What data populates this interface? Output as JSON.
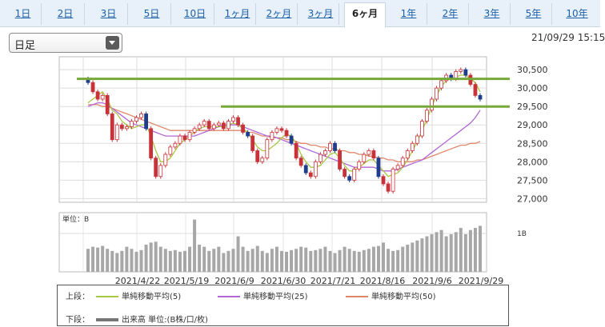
{
  "tabs": [
    {
      "label": "1日"
    },
    {
      "label": "2日"
    },
    {
      "label": "3日"
    },
    {
      "label": "5日"
    },
    {
      "label": "10日"
    },
    {
      "label": "1ヶ月"
    },
    {
      "label": "2ヶ月"
    },
    {
      "label": "3ヶ月"
    },
    {
      "label": "6ヶ月",
      "active": true
    },
    {
      "label": "1年"
    },
    {
      "label": "2年"
    },
    {
      "label": "3年"
    },
    {
      "label": "5年"
    },
    {
      "label": "10年"
    }
  ],
  "period_select": {
    "value": "日足"
  },
  "datetime": "21/09/29 15:15",
  "colors": {
    "up": "#ffffff",
    "down_red": "#c8333a",
    "down_blue": "#203c8c",
    "ma5": "#a8c844",
    "ma25": "#b266d6",
    "ma50": "#e0876a",
    "resistance": "#77a83a",
    "volume": "#a7a7a7"
  },
  "chart_data": {
    "type": "candlestick",
    "y_ticks": [
      "30,500",
      "30,000",
      "29,500",
      "29,000",
      "28,500",
      "28,000",
      "27,500",
      "27,000"
    ],
    "x_ticks": [
      "2021/4/22",
      "2021/5/19",
      "2021/6/9",
      "2021/6/30",
      "2021/7/21",
      "2021/8/16",
      "2021/9/6",
      "2021/9/29"
    ],
    "ylim": [
      26900,
      30850
    ],
    "volume_unit_label": "単位：B",
    "volume_tick": "1B",
    "resistance_lines": [
      30250,
      29500
    ],
    "close": [
      30150,
      29900,
      29700,
      29800,
      29300,
      28600,
      29000,
      28900,
      28950,
      29100,
      29200,
      29300,
      28900,
      28100,
      27600,
      27900,
      28200,
      28400,
      28500,
      28700,
      28600,
      28800,
      28900,
      29000,
      29100,
      28900,
      29000,
      29050,
      28900,
      29100,
      29200,
      29000,
      28800,
      28700,
      28300,
      28000,
      28100,
      28600,
      28800,
      28900,
      28850,
      28700,
      28500,
      28100,
      27900,
      27700,
      27600,
      28000,
      28200,
      28300,
      28500,
      28300,
      27800,
      27600,
      27500,
      27800,
      28000,
      28200,
      28300,
      28100,
      27600,
      27400,
      27200,
      27800,
      27900,
      28100,
      28300,
      28500,
      28700,
      29100,
      29400,
      29700,
      30000,
      30200,
      30350,
      30250,
      30450,
      30500,
      30350,
      30100,
      29800,
      29700
    ],
    "ma5": [
      29600,
      29700,
      29800,
      29900,
      29700,
      29400,
      29300,
      29100,
      29000,
      28900,
      28950,
      29000,
      29000,
      28700,
      28300,
      28000,
      28000,
      28100,
      28300,
      28500,
      28600,
      28700,
      28800,
      28900,
      28950,
      28950,
      28950,
      28950,
      28950,
      29000,
      29050,
      29000,
      28900,
      28800,
      28600,
      28400,
      28300,
      28300,
      28400,
      28500,
      28650,
      28750,
      28700,
      28500,
      28200,
      28000,
      27850,
      27850,
      27900,
      28050,
      28200,
      28250,
      28100,
      27900,
      27750,
      27750,
      27850,
      27950,
      28050,
      28050,
      27900,
      27750,
      27600,
      27650,
      27700,
      27850,
      28050,
      28300,
      28550,
      28850,
      29150,
      29500,
      29800,
      30050,
      30200,
      30250,
      30300,
      30350,
      30350,
      30250,
      30150,
      29900
    ],
    "ma25": [
      29500,
      29550,
      29600,
      29600,
      29550,
      29450,
      29350,
      29250,
      29150,
      29050,
      29000,
      28950,
      28900,
      28850,
      28800,
      28750,
      28700,
      28700,
      28700,
      28700,
      28700,
      28700,
      28700,
      28750,
      28800,
      28850,
      28900,
      28950,
      29000,
      29000,
      29000,
      29000,
      28950,
      28900,
      28850,
      28800,
      28750,
      28700,
      28700,
      28650,
      28600,
      28550,
      28500,
      28450,
      28400,
      28350,
      28300,
      28250,
      28200,
      28150,
      28100,
      28050,
      28000,
      27950,
      27900,
      27850,
      27850,
      27850,
      27850,
      27850,
      27800,
      27750,
      27750,
      27750,
      27800,
      27850,
      27900,
      27950,
      28000,
      28050,
      28150,
      28250,
      28350,
      28450,
      28550,
      28650,
      28750,
      28850,
      28950,
      29050,
      29200,
      29400
    ],
    "ma50": [
      29550,
      29550,
      29550,
      29500,
      29500,
      29450,
      29400,
      29350,
      29300,
      29250,
      29200,
      29150,
      29100,
      29050,
      29000,
      28950,
      28900,
      28850,
      28850,
      28850,
      28850,
      28850,
      28850,
      28850,
      28850,
      28850,
      28850,
      28850,
      28850,
      28850,
      28850,
      28850,
      28850,
      28800,
      28800,
      28750,
      28700,
      28700,
      28650,
      28650,
      28650,
      28600,
      28600,
      28550,
      28500,
      28500,
      28450,
      28450,
      28400,
      28400,
      28350,
      28350,
      28300,
      28300,
      28250,
      28250,
      28200,
      28200,
      28150,
      28150,
      28100,
      28100,
      28050,
      28050,
      28000,
      28000,
      28000,
      28000,
      28050,
      28050,
      28100,
      28150,
      28200,
      28250,
      28300,
      28350,
      28400,
      28450,
      28450,
      28500,
      28500,
      28550
    ],
    "volume_rel": [
      0.55,
      0.6,
      0.58,
      0.62,
      0.55,
      0.5,
      0.45,
      0.5,
      0.6,
      0.55,
      0.48,
      0.52,
      0.65,
      0.7,
      0.72,
      0.6,
      0.55,
      0.5,
      0.52,
      0.48,
      0.5,
      0.6,
      1.25,
      0.65,
      0.6,
      0.5,
      0.55,
      0.6,
      0.45,
      0.5,
      0.55,
      0.85,
      0.6,
      0.5,
      0.55,
      0.62,
      0.5,
      0.45,
      0.55,
      0.6,
      0.5,
      0.48,
      0.52,
      0.55,
      0.6,
      0.58,
      0.5,
      0.52,
      0.55,
      0.6,
      0.5,
      0.45,
      0.52,
      0.6,
      0.55,
      0.5,
      0.48,
      0.52,
      0.55,
      0.6,
      0.62,
      0.7,
      0.55,
      0.5,
      0.52,
      0.6,
      0.65,
      0.7,
      0.75,
      0.8,
      0.85,
      0.9,
      0.95,
      1.0,
      0.85,
      0.9,
      0.95,
      1.05,
      0.9,
      1.0,
      1.05,
      1.1
    ]
  },
  "legend": {
    "upper_label": "上段：",
    "lower_label": "下段：",
    "ma5_label": "単純移動平均(5)",
    "ma25_label": "単純移動平均(25)",
    "ma50_label": "単純移動平均(50)",
    "volume_label": "出来高 単位:(B株/口/枚)"
  }
}
